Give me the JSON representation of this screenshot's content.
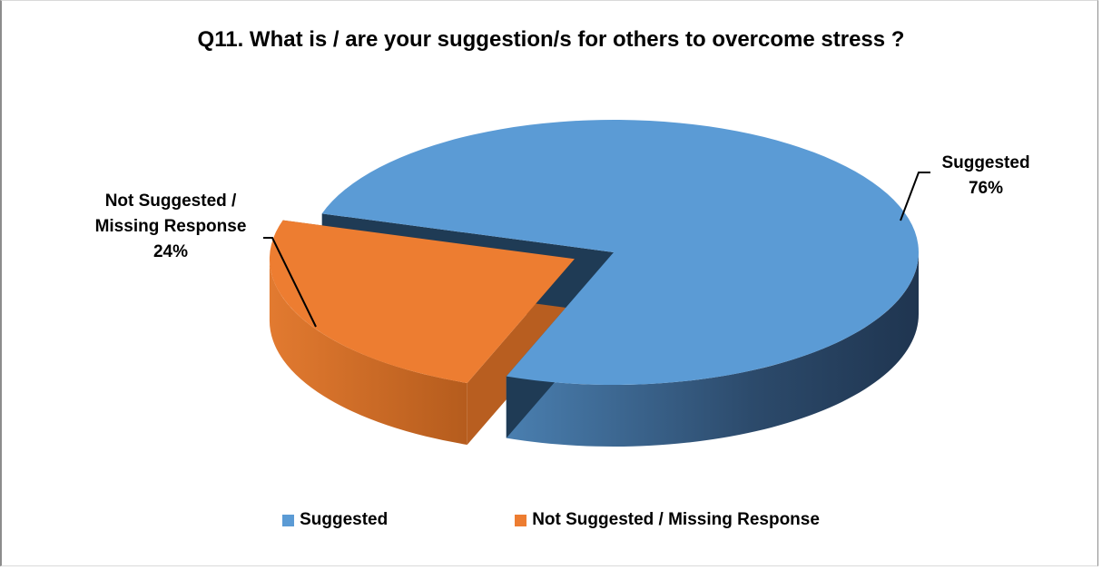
{
  "chart_data": {
    "type": "pie",
    "title": "Q11. What is / are your suggestion/s for others to overcome stress ?",
    "slices": [
      {
        "label": "Suggested",
        "value": 76,
        "value_label": "76%",
        "color": "#5b9bd5",
        "side_color": "#2e4d6e",
        "depth_color": "#1f3b55"
      },
      {
        "label": "Not Suggested / Missing Response",
        "value": 24,
        "value_label": "24%",
        "color": "#ed7d31",
        "side_color": "#b85e20",
        "depth_color": "#a0501a"
      }
    ],
    "data_labels": {
      "suggested": {
        "line1": "Suggested",
        "line2": "76%"
      },
      "not_suggested": {
        "line1": "Not Suggested /",
        "line2": "Missing Response",
        "line3": "24%"
      }
    },
    "legend": {
      "placement": "bottom",
      "items": [
        {
          "label": "Suggested",
          "color": "#5b9bd5"
        },
        {
          "label": "Not Suggested / Missing Response",
          "color": "#ed7d31"
        }
      ]
    }
  }
}
